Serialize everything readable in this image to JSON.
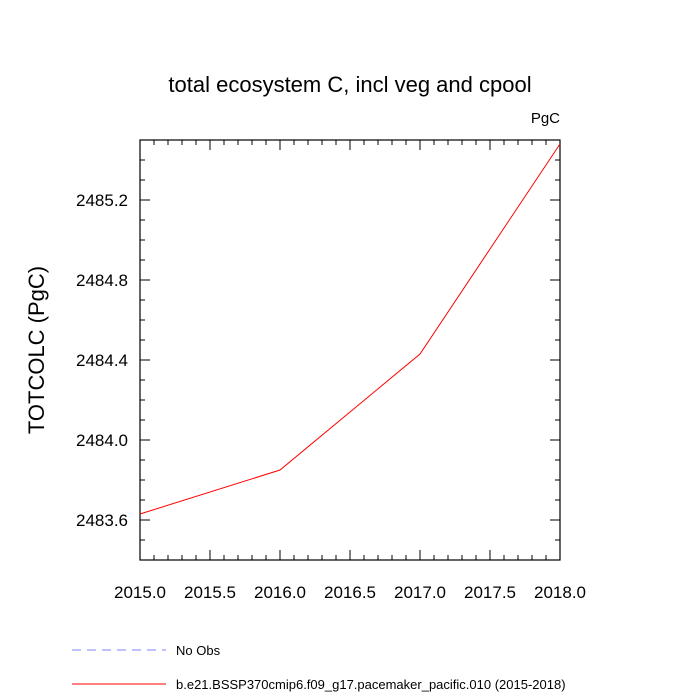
{
  "chart_data": {
    "type": "line",
    "title": "total ecosystem C, incl veg and cpool",
    "units": "PgC",
    "ylabel": "TOTCOLC  (PgC)",
    "xlabel": "",
    "xlim": [
      2015.0,
      2018.0
    ],
    "ylim": [
      2483.4,
      2485.5
    ],
    "x_ticks": [
      "2015.0",
      "2015.5",
      "2016.0",
      "2016.5",
      "2017.0",
      "2017.5",
      "2018.0"
    ],
    "y_ticks": [
      "2483.6",
      "2484.0",
      "2484.4",
      "2484.8",
      "2485.2"
    ],
    "grid": false,
    "legend_position": "bottom",
    "series": [
      {
        "name": "No Obs",
        "color": "#8080ff",
        "style": "dashed",
        "x": [],
        "y": []
      },
      {
        "name": "b.e21.BSSP370cmip6.f09_g17.pacemaker_pacific.010 (2015-2018)",
        "color": "#ff0000",
        "style": "solid",
        "x": [
          2015.0,
          2016.0,
          2017.0,
          2018.0
        ],
        "y": [
          2483.63,
          2483.85,
          2484.43,
          2485.48
        ]
      }
    ]
  }
}
